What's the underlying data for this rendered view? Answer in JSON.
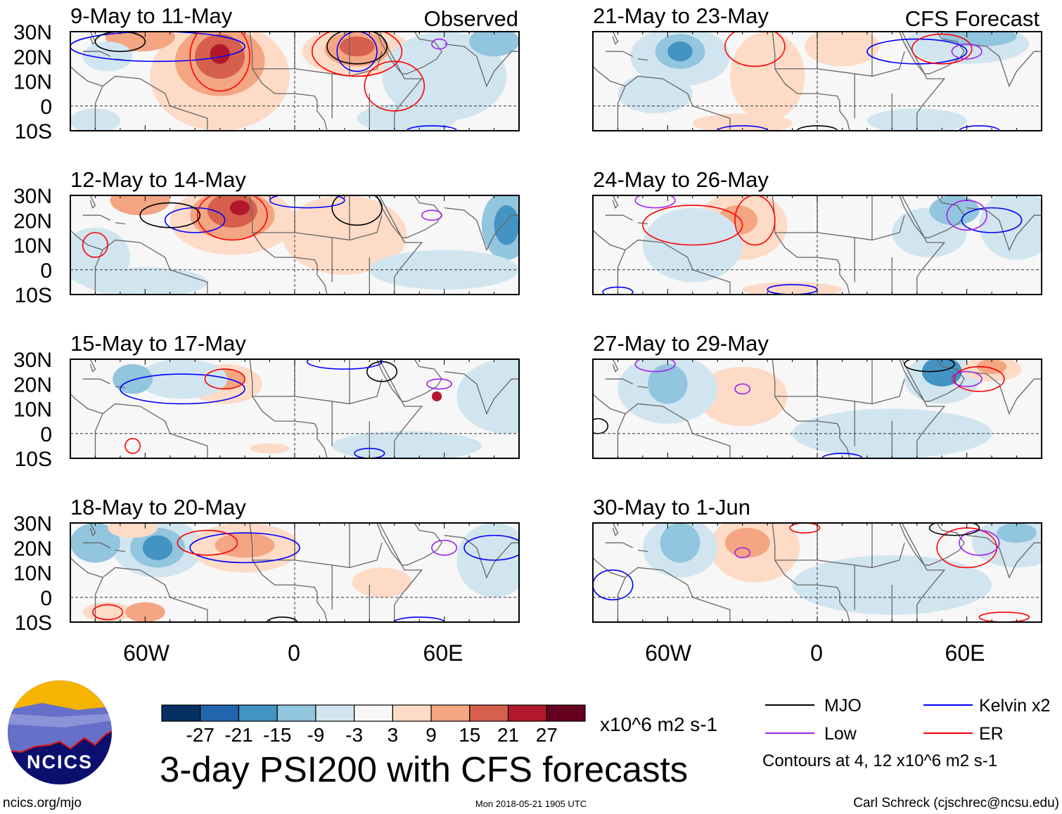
{
  "figure": {
    "title": "3-day PSI200 with CFS forecasts",
    "observed_label": "Observed",
    "forecast_label": "CFS Forecast",
    "units": "x10^6 m2 s-1",
    "contour_note": "Contours at 4, 12 x10^6 m2 s-1",
    "logo_text": "NCICS",
    "site": "ncics.org/mjo",
    "timestamp": "Mon 2018-05-21 1905 UTC",
    "author": "Carl Schreck (cjschrec@ncsu.edu)"
  },
  "legend": {
    "mjo": {
      "label": "MJO",
      "color": "#000000"
    },
    "kelvin": {
      "label": "Kelvin x2",
      "color": "#0000ff"
    },
    "low": {
      "label": "Low",
      "color": "#a020f0"
    },
    "er": {
      "label": "ER",
      "color": "#ff0000"
    }
  },
  "chart_data": {
    "type": "heatmap",
    "variable": "200-hPa streamfunction anomaly",
    "lat_range": [
      -10,
      30
    ],
    "lon_range": [
      -90,
      90
    ],
    "lat_ticks": [
      "30N",
      "20N",
      "10N",
      "0",
      "10S"
    ],
    "lon_ticks": [
      "60W",
      "0",
      "60E"
    ],
    "colorbar": {
      "levels": [
        "-27",
        "-21",
        "-15",
        "-9",
        "-3",
        "3",
        "9",
        "15",
        "21",
        "27"
      ],
      "colors": [
        "#053061",
        "#2166ac",
        "#4393c3",
        "#92c5de",
        "#d1e5f0",
        "#f7f7f7",
        "#fddbc7",
        "#f4a582",
        "#d6604d",
        "#b2182b",
        "#67001f"
      ]
    },
    "panels": [
      {
        "title": "9-May to 11-May",
        "type": "observed"
      },
      {
        "title": "12-May to 14-May",
        "type": "observed"
      },
      {
        "title": "15-May to 17-May",
        "type": "observed"
      },
      {
        "title": "18-May to 20-May",
        "type": "observed"
      },
      {
        "title": "21-May to 23-May",
        "type": "forecast"
      },
      {
        "title": "24-May to 26-May",
        "type": "forecast"
      },
      {
        "title": "27-May to 29-May",
        "type": "forecast"
      },
      {
        "title": "30-May to 1-Jun",
        "type": "forecast"
      }
    ]
  }
}
